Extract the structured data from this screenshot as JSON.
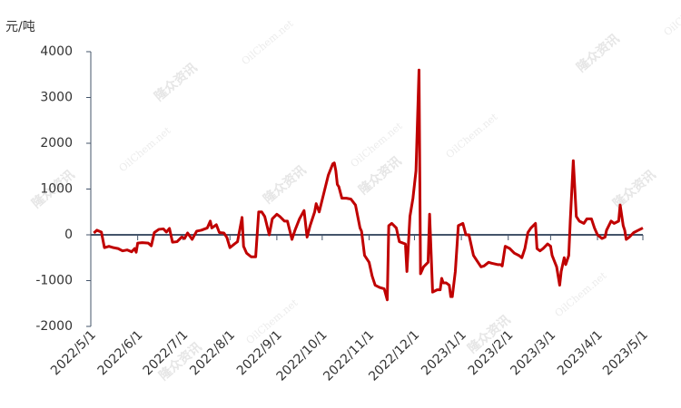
{
  "chart_data": {
    "type": "line",
    "y_label": "元/吨",
    "watermark": {
      "brand": "隆众资讯",
      "site": "OilChem.net"
    },
    "x": [
      "2022/5/3",
      "2022/5/5",
      "2022/5/8",
      "2022/5/10",
      "2022/5/13",
      "2022/5/16",
      "2022/5/19",
      "2022/5/22",
      "2022/5/25",
      "2022/5/28",
      "2022/5/30",
      "2022/5/31",
      "2022/6/1",
      "2022/6/4",
      "2022/6/8",
      "2022/6/10",
      "2022/6/12",
      "2022/6/15",
      "2022/6/18",
      "2022/6/20",
      "2022/6/22",
      "2022/6/24",
      "2022/6/27",
      "2022/6/30",
      "2022/7/2",
      "2022/7/4",
      "2022/7/7",
      "2022/7/10",
      "2022/7/13",
      "2022/7/17",
      "2022/7/19",
      "2022/7/20",
      "2022/7/23",
      "2022/7/25",
      "2022/7/28",
      "2022/7/30",
      "2022/8/1",
      "2022/8/4",
      "2022/8/6",
      "2022/8/9",
      "2022/8/10",
      "2022/8/12",
      "2022/8/15",
      "2022/8/18",
      "2022/8/20",
      "2022/8/22",
      "2022/8/24",
      "2022/8/27",
      "2022/8/29",
      "2022/9/1",
      "2022/9/3",
      "2022/9/6",
      "2022/9/8",
      "2022/9/11",
      "2022/9/13",
      "2022/9/16",
      "2022/9/19",
      "2022/9/21",
      "2022/9/23",
      "2022/9/26",
      "2022/9/27",
      "2022/9/29",
      "2022/10/2",
      "2022/10/5",
      "2022/10/8",
      "2022/10/9",
      "2022/10/10",
      "2022/10/11",
      "2022/10/12",
      "2022/10/14",
      "2022/10/17",
      "2022/10/20",
      "2022/10/23",
      "2022/10/26",
      "2022/10/27",
      "2022/10/29",
      "2022/11/1",
      "2022/11/3",
      "2022/11/5",
      "2022/11/8",
      "2022/11/11",
      "2022/11/13",
      "2022/11/14",
      "2022/11/16",
      "2022/11/19",
      "2022/11/21",
      "2022/11/25",
      "2022/11/26",
      "2022/11/28",
      "2022/11/30",
      "2022/12/2",
      "2022/12/4",
      "2022/12/5",
      "2022/12/7",
      "2022/12/10",
      "2022/12/11",
      "2022/12/13",
      "2022/12/16",
      "2022/12/18",
      "2022/12/19",
      "2022/12/20",
      "2022/12/22",
      "2022/12/24",
      "2022/12/25",
      "2022/12/26",
      "2022/12/28",
      "2022/12/30",
      "2023/1/2",
      "2023/1/4",
      "2023/1/6",
      "2023/1/9",
      "2023/1/11",
      "2023/1/14",
      "2023/1/16",
      "2023/1/19",
      "2023/1/21",
      "2023/1/25",
      "2023/1/27",
      "2023/1/28",
      "2023/1/30",
      "2023/2/2",
      "2023/2/5",
      "2023/2/8",
      "2023/2/10",
      "2023/2/12",
      "2023/2/14",
      "2023/2/16",
      "2023/2/19",
      "2023/2/20",
      "2023/2/22",
      "2023/2/24",
      "2023/2/27",
      "2023/3/1",
      "2023/3/2",
      "2023/3/5",
      "2023/3/7",
      "2023/3/8",
      "2023/3/10",
      "2023/3/11",
      "2023/3/13",
      "2023/3/14",
      "2023/3/16",
      "2023/3/18",
      "2023/3/20",
      "2023/3/23",
      "2023/3/25",
      "2023/3/28",
      "2023/3/30",
      "2023/4/1",
      "2023/4/4",
      "2023/4/6",
      "2023/4/7",
      "2023/4/10",
      "2023/4/12",
      "2023/4/15",
      "2023/4/16",
      "2023/4/18",
      "2023/4/19",
      "2023/4/20",
      "2023/4/22",
      "2023/4/25",
      "2023/4/28",
      "2023/5/1"
    ],
    "series": [
      {
        "color": "#c00000",
        "values": [
          40,
          100,
          60,
          -280,
          -250,
          -280,
          -300,
          -350,
          -330,
          -370,
          -300,
          -380,
          -180,
          -170,
          -180,
          -240,
          50,
          120,
          130,
          60,
          140,
          -160,
          -150,
          -50,
          -80,
          40,
          -100,
          80,
          100,
          150,
          300,
          150,
          220,
          50,
          40,
          -60,
          -280,
          -200,
          -150,
          380,
          -250,
          -400,
          -480,
          -480,
          500,
          500,
          400,
          0,
          350,
          450,
          400,
          300,
          300,
          -100,
          100,
          350,
          530,
          -50,
          200,
          500,
          680,
          500,
          900,
          1300,
          1550,
          1570,
          1400,
          1100,
          1050,
          800,
          800,
          780,
          650,
          150,
          80,
          -450,
          -600,
          -900,
          -1100,
          -1150,
          -1180,
          -1420,
          200,
          250,
          150,
          -150,
          -200,
          -800,
          400,
          800,
          1400,
          3600,
          -850,
          -700,
          -600,
          450,
          -1250,
          -1200,
          -1200,
          -950,
          -1050,
          -1050,
          -1100,
          -1350,
          -1350,
          -800,
          200,
          250,
          0,
          0,
          -450,
          -550,
          -700,
          -680,
          -600,
          -620,
          -650,
          -650,
          -680,
          -250,
          -300,
          -400,
          -450,
          -500,
          -300,
          50,
          150,
          250,
          -300,
          -350,
          -300,
          -200,
          -250,
          -450,
          -700,
          -1100,
          -800,
          -500,
          -650,
          -450,
          300,
          1620,
          400,
          300,
          250,
          350,
          350,
          150,
          0,
          -80,
          -50,
          100,
          300,
          250,
          300,
          650,
          200,
          100,
          -100,
          -50,
          50,
          100,
          150
        ]
      }
    ],
    "xlim": [
      "2022/5/1",
      "2023/5/1"
    ],
    "xticks": [
      "2022/5/1",
      "2022/6/1",
      "2022/7/1",
      "2022/8/1",
      "2022/9/1",
      "2022/10/1",
      "2022/11/1",
      "2022/12/1",
      "2023/1/1",
      "2023/2/1",
      "2023/3/1",
      "2023/4/1",
      "2023/5/1"
    ],
    "ylim": [
      -2000,
      4000
    ],
    "yticks": [
      -2000,
      -1000,
      0,
      1000,
      2000,
      3000,
      4000
    ],
    "axis_color": "#44546a"
  }
}
